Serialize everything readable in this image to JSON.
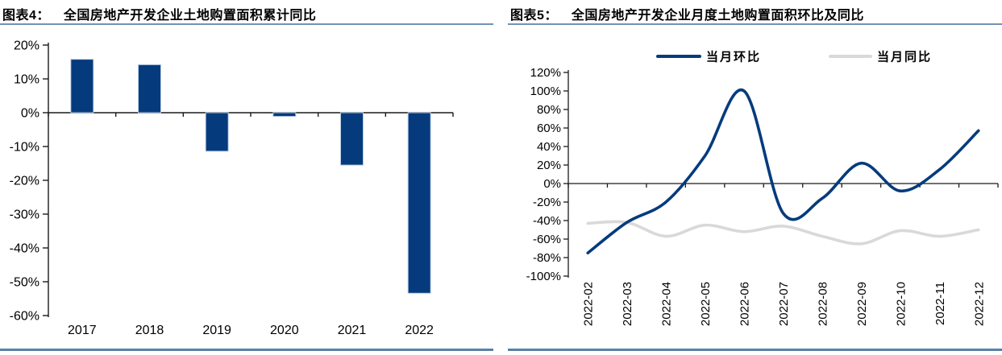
{
  "colors": {
    "navy": "#053B7D",
    "series_gray": "#D9D9D9",
    "bar_outline": "#B9CDE5",
    "title_rule": "#7392B7",
    "bottom_rule": "#5B7FA6",
    "axis": "#1A1A1A",
    "text": "#000000",
    "background": "#FFFFFF"
  },
  "figures": [
    {
      "label": "图表4：",
      "caption": "全国房地产开发企业土地购置面积累计同比"
    },
    {
      "label": "图表5：",
      "caption": "全国房地产开发企业月度土地购置面积环比及同比"
    }
  ],
  "chart_data": [
    {
      "type": "bar",
      "title": "全国房地产开发企业土地购置面积累计同比",
      "categories": [
        "2017",
        "2018",
        "2019",
        "2020",
        "2021",
        "2022"
      ],
      "values": [
        15.8,
        14.2,
        -11.4,
        -1.1,
        -15.5,
        -53.4
      ],
      "unit": "%",
      "ylim": [
        -60,
        20
      ],
      "ytick_step": 10,
      "ytick_labels": [
        "20%",
        "10%",
        "0%",
        "-10%",
        "-20%",
        "-30%",
        "-40%",
        "-50%",
        "-60%"
      ],
      "grid": false,
      "bar_color": "#053B7D",
      "bar_outline": "#B9CDE5",
      "legend": null
    },
    {
      "type": "line",
      "title": "全国房地产开发企业月度土地购置面积环比及同比",
      "categories": [
        "2022-02",
        "2022-03",
        "2022-04",
        "2022-05",
        "2022-06",
        "2022-07",
        "2022-08",
        "2022-09",
        "2022-10",
        "2022-11",
        "2022-12"
      ],
      "series": [
        {
          "name": "当月环比",
          "color": "#053B7D",
          "values": [
            -75,
            -42,
            -20,
            30,
            100,
            -32,
            -16,
            22,
            -8,
            15,
            57
          ]
        },
        {
          "name": "当月同比",
          "color": "#D9D9D9",
          "values": [
            -43,
            -42,
            -57,
            -45,
            -52,
            -46,
            -57,
            -65,
            -51,
            -57,
            -50
          ]
        }
      ],
      "unit": "%",
      "ylim": [
        -100,
        120
      ],
      "ytick_step": 20,
      "ytick_labels": [
        "120%",
        "100%",
        "80%",
        "60%",
        "40%",
        "20%",
        "0%",
        "-20%",
        "-40%",
        "-60%",
        "-80%",
        "-100%"
      ],
      "grid": false,
      "smooth": true,
      "legend_position": "top",
      "x_label_rotation": -90
    }
  ]
}
